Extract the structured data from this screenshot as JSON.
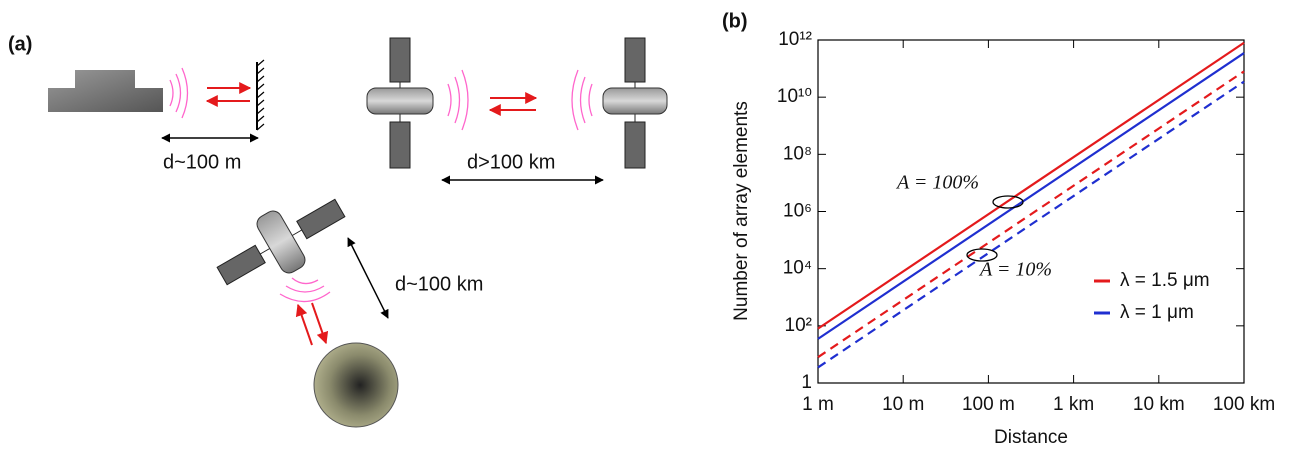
{
  "panel_a": {
    "label": "(a)",
    "distances": [
      "d~100 m",
      "d>100 km",
      "d~100 km"
    ]
  },
  "chart_data": {
    "type": "line",
    "panel_label": "(b)",
    "xlabel": "Distance",
    "ylabel": "Number of array elements",
    "log_x": true,
    "log_y": true,
    "x": [
      1,
      100000
    ],
    "xlim": [
      1,
      100000
    ],
    "xticks": [
      {
        "value": 1,
        "label": "1 m"
      },
      {
        "value": 10,
        "label": "10 m"
      },
      {
        "value": 100,
        "label": "100 m"
      },
      {
        "value": 1000,
        "label": "1 km"
      },
      {
        "value": 10000,
        "label": "10 km"
      },
      {
        "value": 100000,
        "label": "100 km"
      }
    ],
    "ylim": [
      1,
      1000000000000
    ],
    "yticks": [
      1,
      {
        "value": 100,
        "label": "10²"
      },
      {
        "value": 10000,
        "label": "10⁴"
      },
      {
        "value": 1000000,
        "label": "10⁶"
      },
      {
        "value": 100000000,
        "label": "10⁸"
      },
      {
        "value": 10000000000,
        "label": "10¹⁰"
      },
      {
        "value": 1000000000000,
        "label": "10¹²"
      }
    ],
    "series": [
      {
        "color": "#e41a1c",
        "style": "solid",
        "values": [
          80,
          800000000000
        ]
      },
      {
        "color": "#1f2fd0",
        "style": "solid",
        "values": [
          35,
          350000000000
        ]
      },
      {
        "name": "λ = 1.5 μm",
        "color": "#e41a1c",
        "style": "dashed",
        "values": [
          8,
          80000000000
        ]
      },
      {
        "name": "λ = 1 μm",
        "color": "#1f2fd0",
        "style": "dashed",
        "values": [
          3.5,
          35000000000
        ]
      }
    ],
    "annotations": [
      "A = 100%",
      "A = 10%"
    ],
    "legend": "lower right"
  }
}
